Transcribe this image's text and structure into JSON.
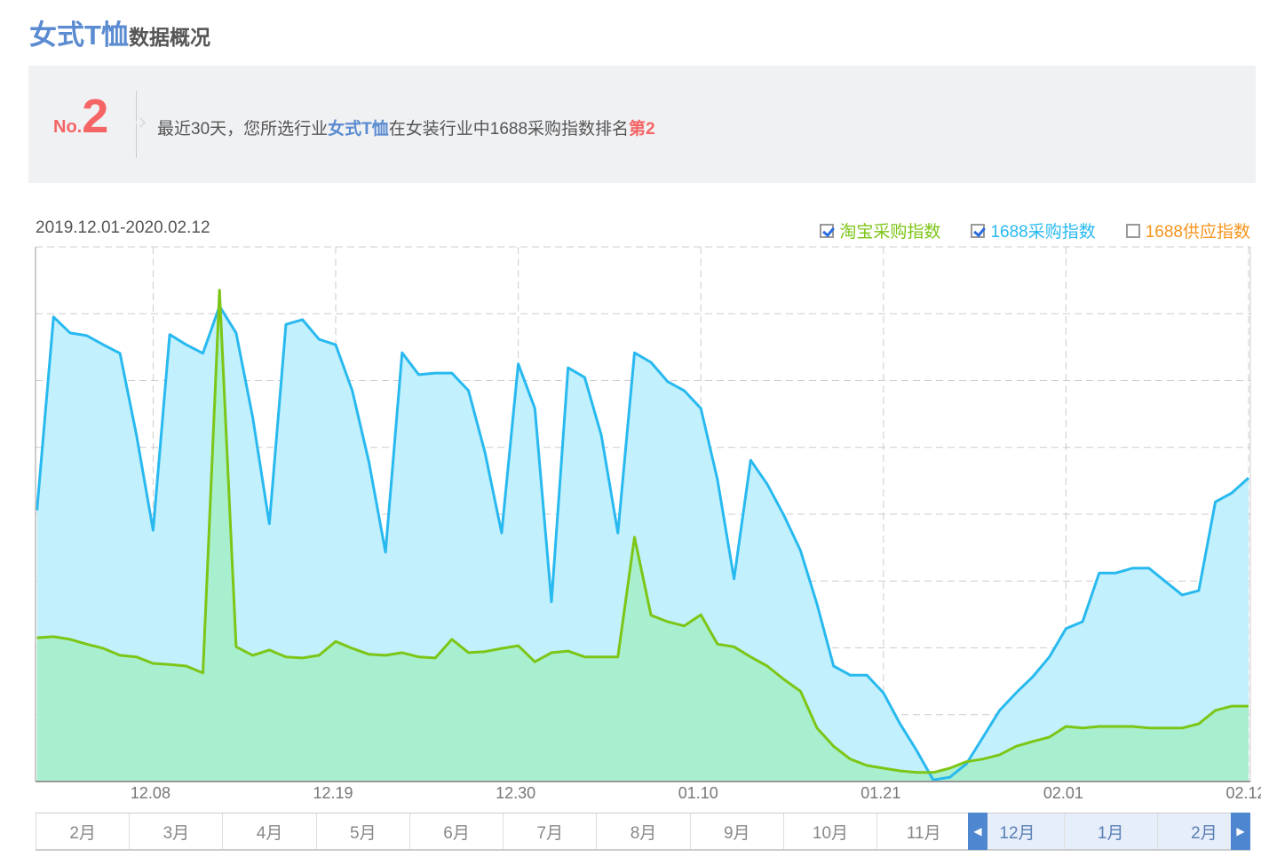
{
  "header": {
    "category": "女式T恤",
    "subtitle": "数据概况"
  },
  "banner": {
    "no_prefix": "No.",
    "rank_number": "2",
    "text_before": "最近30天，您所选行业",
    "category": "女式T恤",
    "text_middle": "在女装行业中1688采购指数排名",
    "rank_text": "第2"
  },
  "date_range": "2019.12.01-2020.02.12",
  "legend": [
    {
      "label": "淘宝采购指数",
      "checked": true,
      "color": "#7dc516"
    },
    {
      "label": "1688采购指数",
      "checked": true,
      "color": "#28b9f0"
    },
    {
      "label": "1688供应指数",
      "checked": false,
      "color": "#f7941d"
    }
  ],
  "chart_data": {
    "type": "area",
    "x": [
      "12.01",
      "12.02",
      "12.03",
      "12.04",
      "12.05",
      "12.06",
      "12.07",
      "12.08",
      "12.09",
      "12.10",
      "12.11",
      "12.12",
      "12.13",
      "12.14",
      "12.15",
      "12.16",
      "12.17",
      "12.18",
      "12.19",
      "12.20",
      "12.21",
      "12.22",
      "12.23",
      "12.24",
      "12.25",
      "12.26",
      "12.27",
      "12.28",
      "12.29",
      "12.30",
      "12.31",
      "01.01",
      "01.02",
      "01.03",
      "01.04",
      "01.05",
      "01.06",
      "01.07",
      "01.08",
      "01.09",
      "01.10",
      "01.11",
      "01.12",
      "01.13",
      "01.14",
      "01.15",
      "01.16",
      "01.17",
      "01.18",
      "01.19",
      "01.20",
      "01.21",
      "01.22",
      "01.23",
      "01.24",
      "01.25",
      "01.26",
      "01.27",
      "01.28",
      "01.29",
      "01.30",
      "01.31",
      "02.01",
      "02.02",
      "02.03",
      "02.04",
      "02.05",
      "02.06",
      "02.07",
      "02.08",
      "02.09",
      "02.10",
      "02.11",
      "02.12"
    ],
    "x_ticks": [
      "12.08",
      "12.19",
      "12.30",
      "01.10",
      "01.21",
      "02.01",
      "02.12"
    ],
    "ylim": [
      0,
      100
    ],
    "grid": true,
    "y_scale_note_hidden": true,
    "series": [
      {
        "name": "1688采购指数",
        "color": "#28b9f0",
        "fill": "#c2f0fc",
        "values": [
          50.7,
          86.9,
          83.9,
          83.4,
          81.7,
          80.1,
          64.8,
          47.0,
          83.6,
          81.7,
          80.1,
          88.9,
          83.9,
          68.1,
          48.2,
          85.5,
          86.4,
          82.7,
          81.7,
          73.1,
          59.8,
          42.9,
          80.2,
          76.1,
          76.4,
          76.4,
          73.1,
          61.5,
          46.5,
          78.1,
          69.8,
          33.6,
          77.4,
          75.6,
          64.8,
          46.5,
          80.2,
          78.4,
          74.8,
          73.1,
          69.8,
          56.5,
          37.9,
          60.1,
          55.6,
          49.8,
          43.2,
          33.2,
          21.6,
          19.9,
          19.9,
          16.6,
          10.8,
          5.8,
          0.3,
          0.8,
          3.3,
          8.3,
          13.3,
          16.6,
          19.6,
          23.3,
          28.6,
          29.9,
          39.0,
          39.0,
          39.9,
          39.9,
          37.4,
          34.9,
          35.7,
          52.3,
          54.0,
          56.8
        ]
      },
      {
        "name": "淘宝采购指数",
        "color": "#7dc516",
        "fill": "#a6efcc",
        "values": [
          26.9,
          27.1,
          26.6,
          25.7,
          24.9,
          23.6,
          23.3,
          22.1,
          21.9,
          21.6,
          20.3,
          91.9,
          25.2,
          23.6,
          24.6,
          23.3,
          23.1,
          23.6,
          26.2,
          24.9,
          23.8,
          23.6,
          24.1,
          23.3,
          23.1,
          26.6,
          24.1,
          24.3,
          24.9,
          25.4,
          22.4,
          24.1,
          24.4,
          23.3,
          23.3,
          23.3,
          45.7,
          31.1,
          29.9,
          29.1,
          31.2,
          25.7,
          25.2,
          23.3,
          21.6,
          19.1,
          16.9,
          10.0,
          6.6,
          4.2,
          3.0,
          2.5,
          2.0,
          1.7,
          1.7,
          2.5,
          3.7,
          4.2,
          5.0,
          6.6,
          7.5,
          8.3,
          10.3,
          10.0,
          10.3,
          10.3,
          10.3,
          10.0,
          10.0,
          10.0,
          10.8,
          13.3,
          14.1,
          14.1
        ]
      }
    ]
  },
  "slider": {
    "months": [
      "2月",
      "3月",
      "4月",
      "5月",
      "6月",
      "7月",
      "8月",
      "9月",
      "10月",
      "11月",
      "12月",
      "1月",
      "2月"
    ],
    "selected": [
      "12月",
      "1月",
      "2月"
    ],
    "left_handle": "◀",
    "right_handle": "▶"
  }
}
